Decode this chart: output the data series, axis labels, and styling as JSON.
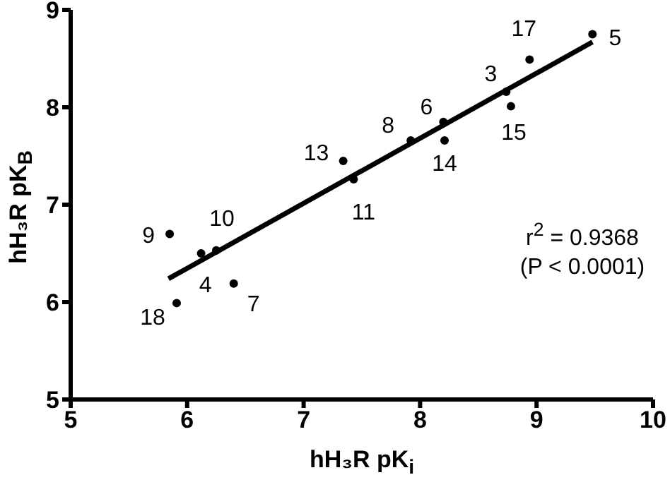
{
  "chart_data": {
    "type": "scatter",
    "xlabel": "hH₃R pK$_{i}$",
    "ylabel": "hH₃R pK$_{B}$",
    "xlim": [
      5,
      10
    ],
    "ylim": [
      5,
      9
    ],
    "xticks": [
      5,
      6,
      7,
      8,
      9,
      10
    ],
    "yticks": [
      5,
      6,
      7,
      8,
      9
    ],
    "grid": false,
    "series": [
      {
        "color": "#000000",
        "marker": "circle",
        "x": [
          5.85,
          6.12,
          6.25,
          5.91,
          6.4,
          7.34,
          7.43,
          7.92,
          8.2,
          8.21,
          8.74,
          8.78,
          8.94,
          9.48
        ],
        "values": [
          6.7,
          6.5,
          6.53,
          5.99,
          6.19,
          7.45,
          7.26,
          7.66,
          7.85,
          7.66,
          8.16,
          8.01,
          8.49,
          8.75
        ]
      },
      {
        "type": "line",
        "color": "#000000",
        "marker": "none",
        "x": [
          5.84,
          9.48
        ],
        "values": [
          6.24,
          8.67
        ]
      }
    ],
    "annotations": [
      {
        "text": "9",
        "x": 5.85,
        "y": 6.7
      },
      {
        "text": "4",
        "x": 6.12,
        "y": 6.5
      },
      {
        "text": "10",
        "x": 6.25,
        "y": 6.53
      },
      {
        "text": "18",
        "x": 5.91,
        "y": 5.99
      },
      {
        "text": "7",
        "x": 6.4,
        "y": 6.19
      },
      {
        "text": "13",
        "x": 7.34,
        "y": 7.45
      },
      {
        "text": "11",
        "x": 7.43,
        "y": 7.26
      },
      {
        "text": "8",
        "x": 7.92,
        "y": 7.66
      },
      {
        "text": "6",
        "x": 8.2,
        "y": 7.85
      },
      {
        "text": "14",
        "x": 8.21,
        "y": 7.66
      },
      {
        "text": "3",
        "x": 8.74,
        "y": 8.16
      },
      {
        "text": "15",
        "x": 8.78,
        "y": 8.01
      },
      {
        "text": "17",
        "x": 8.94,
        "y": 8.49
      },
      {
        "text": "5",
        "x": 9.48,
        "y": 8.75
      },
      "r$^{2}$ = 0.9368",
      "(P < 0.0001)"
    ]
  }
}
